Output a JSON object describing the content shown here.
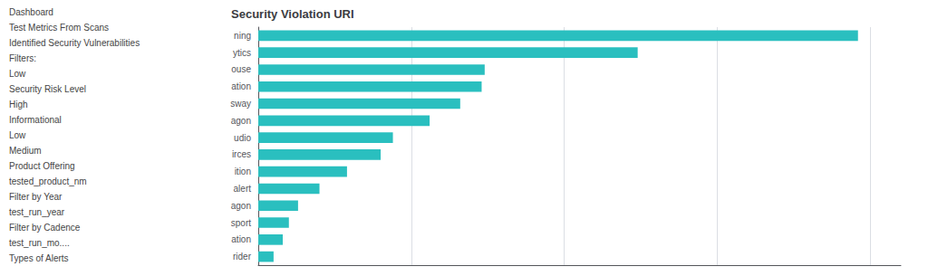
{
  "chart_data": {
    "type": "bar",
    "orientation": "horizontal",
    "title": "Security Violation URI",
    "categories": [
      "ning",
      "ytics",
      "ouse",
      "ation",
      "sway",
      "agon",
      "udio",
      "irces",
      "ition",
      "alert",
      "agon",
      "sport",
      "ation",
      "rider"
    ],
    "values": [
      980,
      620,
      370,
      365,
      330,
      280,
      220,
      200,
      145,
      100,
      65,
      50,
      40,
      25
    ],
    "color": "#2abfbf",
    "xlim": [
      0,
      1050
    ],
    "xticks": [
      0,
      250,
      500,
      750,
      1000
    ],
    "grid": true,
    "tick_labels": "y",
    "annotations": [
      "Dashboard",
      "Test Metrics From Scans",
      "Identified Security Vulnerabilities",
      "Filters:",
      "Low",
      "Security Risk Level",
      "High",
      "Informational",
      "Low",
      "Medium",
      "Product Offering",
      "tested_product_nm",
      "Filter by Year",
      "test_run_year",
      "Filter by Cadence",
      "test_run_mo....",
      "Types of Alerts"
    ]
  }
}
